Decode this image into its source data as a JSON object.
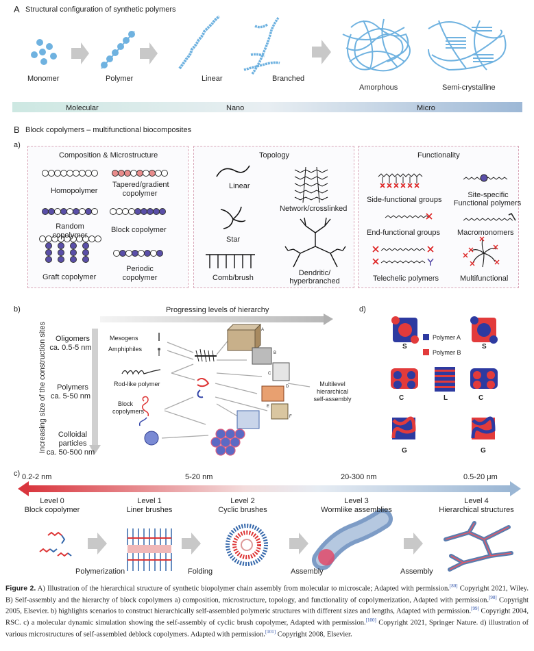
{
  "panelA": {
    "letter": "A",
    "title": "Structural configuration of synthetic polymers",
    "stages": [
      "Monomer",
      "Polymer",
      "Linear",
      "Branched",
      "Amorphous",
      "Semi-crystalline"
    ],
    "scale": [
      "Molecular",
      "Nano",
      "Micro"
    ]
  },
  "panelB": {
    "letter": "B",
    "title": "Block copolymers – multifunctional biocomposites",
    "sub_a": "a)",
    "comp": {
      "heading": "Composition & Microstructure",
      "homopolymer": "Homopolymer",
      "tapered1": "Tapered/gradient",
      "tapered2": "copolymer",
      "random1": "Random",
      "random2": "copolymer",
      "block": "Block copolymer",
      "graft": "Graft copolymer",
      "periodic1": "Periodic",
      "periodic2": "copolymer"
    },
    "topo": {
      "heading": "Topology",
      "linear": "Linear",
      "network": "Network/crosslinked",
      "star": "Star",
      "comb": "Comb/brush",
      "dendritic1": "Dendritic/",
      "dendritic2": "hyperbranched"
    },
    "func": {
      "heading": "Functionality",
      "side": "Side-functional groups",
      "site1": "Site-specific",
      "site2": "Functional polymers",
      "end": "End-functional groups",
      "macro": "Macromonomers",
      "telechelic": "Telechelic polymers",
      "multi": "Multifunctional"
    }
  },
  "panel_b": {
    "letter": "b)",
    "arrow_label": "Progressing levels of hierarchy",
    "vertical": "Increasing size of the construction sites",
    "sizes": [
      {
        "l1": "Oligomers",
        "l2": "ca. 0.5-5 nm"
      },
      {
        "l1": "Polymers",
        "l2": "ca. 5-50 nm"
      },
      {
        "l1": "Colloidal",
        "l2": "particles",
        "l3": "ca. 50-500 nm"
      }
    ],
    "blocks": [
      "Mesogens",
      "Amphiphiles",
      "Rod-like polymer",
      "Block",
      "copolymers"
    ],
    "letters": [
      "A",
      "B",
      "C",
      "D",
      "E",
      "F"
    ],
    "result1": "Multilevel",
    "result2": "hierarchical",
    "result3": "self-assembly"
  },
  "panel_d": {
    "letter": "d)",
    "legend": [
      "Polymer A",
      "Polymer B"
    ],
    "morph": [
      "S",
      "S",
      "C",
      "L",
      "C",
      "G",
      "G"
    ],
    "colors": {
      "A": "#2d3aa0",
      "B": "#e23b3b"
    }
  },
  "panel_c": {
    "letter": "c)",
    "ranges": [
      "0.2-2 nm",
      "5-20 nm",
      "20-300 nm",
      "0.5-20 μm"
    ],
    "levels": [
      {
        "l1": "Level 0",
        "l2": "Block copolymer"
      },
      {
        "l1": "Level 1",
        "l2": "Liner brushes"
      },
      {
        "l1": "Level 2",
        "l2": "Cyclic brushes"
      },
      {
        "l1": "Level 3",
        "l2": "Wormlike assemblies"
      },
      {
        "l1": "Level 4",
        "l2": "Hierarchical structures"
      }
    ],
    "steps": [
      "Polymerization",
      "Folding",
      "Assembly",
      "Assembly"
    ]
  },
  "caption": {
    "label": "Figure 2.",
    "t1": " A) Illustration of the hierarchical structure of synthetic biopolymer chain assembly from molecular to microscale; Adapted with permission.",
    "r1": "[80]",
    "t2": " Copyright 2021, Wiley. B) Self-assembly and the hierarchy of block copolymers a) composition, microstructure, topology, and functionality of copolymerization, Adapted with permission.",
    "r2": "[98]",
    "t3": " Copyright 2005, Elsevier. b) highlights scenarios to construct hierarchically self-assembled polymeric structures with different sizes and lengths, Adapted with permission.",
    "r3": "[99]",
    "t4": " Copyright 2004, RSC. c) a molecular dynamic simulation showing the self-assembly of cyclic brush copolymer, Adapted with permission.",
    "r4": "[100]",
    "t5": " Copyright 2021, Springer Nature. d) illustration of various microstructures of self-assembled deblock copolymers. Adapted with permission.",
    "r5": "[101]",
    "t6": " Copyright 2008, Elsevier."
  }
}
